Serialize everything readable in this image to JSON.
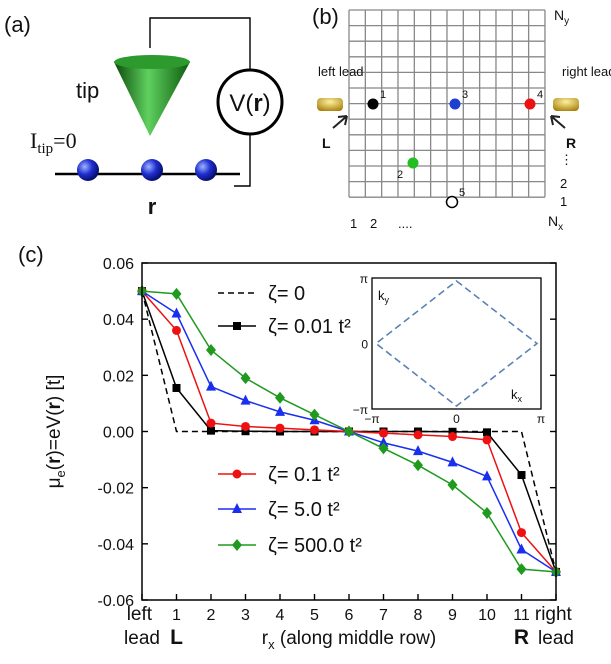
{
  "panel_a": {
    "label": "(a)",
    "tip": "tip",
    "current": [
      "I",
      "tip",
      "=0"
    ],
    "voltage": [
      "V(",
      "r",
      ")"
    ],
    "position": "r"
  },
  "panel_b": {
    "label": "(b)",
    "ny": [
      "N",
      "y"
    ],
    "nx": [
      "N",
      "x"
    ],
    "left_lead": "left lead",
    "right_lead": "right lead",
    "L": "L",
    "R": "R",
    "sites": [
      "1",
      "2",
      "3",
      "4",
      "5"
    ],
    "bottom_labels": [
      "1",
      "2",
      "...."
    ],
    "right_labels": [
      "⋮",
      "2",
      "1"
    ]
  },
  "chart_data": {
    "type": "line",
    "panel_label": "(c)",
    "x": [
      0,
      1,
      2,
      3,
      4,
      5,
      6,
      7,
      8,
      9,
      10,
      11,
      12
    ],
    "xlim": [
      0,
      12
    ],
    "xticks": [
      {
        "value": 0,
        "label": "left lead"
      },
      1,
      2,
      3,
      4,
      5,
      6,
      7,
      8,
      9,
      10,
      11,
      {
        "value": 12,
        "label": "right lead"
      }
    ],
    "ylim": [
      -0.06,
      0.06
    ],
    "yticks": [
      0.06,
      0.04,
      0.02,
      {
        "value": 0,
        "label": "0.00"
      },
      -0.02,
      -0.04,
      -0.06
    ],
    "x_label": [
      "r",
      "x",
      " (along middle row)"
    ],
    "y_label": [
      "μ",
      "e",
      "(",
      "r",
      ")=eV(",
      "r",
      ") [t]"
    ],
    "annotations": {
      "L": "L",
      "R": "R"
    },
    "series": [
      {
        "name": "ζ= 0",
        "color": "#000000",
        "marker": "none",
        "dashed": true,
        "values": [
          0.05,
          0,
          0,
          0,
          0,
          0,
          0,
          0,
          0,
          0,
          0,
          0,
          -0.05
        ]
      },
      {
        "name": "ζ= 0.01 t²",
        "color": "#000000",
        "marker": "square",
        "dashed": false,
        "values": [
          0.05,
          0.0155,
          0.0003,
          0.0001,
          0,
          0,
          0,
          0,
          0,
          -0.0001,
          -0.0003,
          -0.0155,
          -0.05
        ]
      },
      {
        "name": "ζ= 0.1 t²",
        "color": "#ee1111",
        "marker": "circle",
        "dashed": false,
        "values": [
          0.05,
          0.036,
          0.003,
          0.0018,
          0.0012,
          0.0006,
          0,
          -0.0006,
          -0.0012,
          -0.0018,
          -0.003,
          -0.036,
          -0.05
        ]
      },
      {
        "name": "ζ= 5.0 t²",
        "color": "#1a2fee",
        "marker": "triangle",
        "dashed": false,
        "values": [
          0.05,
          0.042,
          0.016,
          0.011,
          0.007,
          0.004,
          0,
          -0.004,
          -0.007,
          -0.011,
          -0.016,
          -0.042,
          -0.05
        ]
      },
      {
        "name": "ζ= 500.0 t²",
        "color": "#1f9a1f",
        "marker": "diamond",
        "dashed": false,
        "values": [
          0.05,
          0.049,
          0.029,
          0.019,
          0.012,
          0.006,
          0,
          -0.006,
          -0.012,
          -0.019,
          -0.029,
          -0.049,
          -0.05
        ]
      }
    ],
    "inset": {
      "xtick_labels": [
        "−π",
        "0",
        "π"
      ],
      "ytick_labels": [
        "π",
        "0",
        "−π"
      ],
      "xlabel": [
        "k",
        "x"
      ],
      "ylabel": [
        "k",
        "y"
      ]
    }
  }
}
